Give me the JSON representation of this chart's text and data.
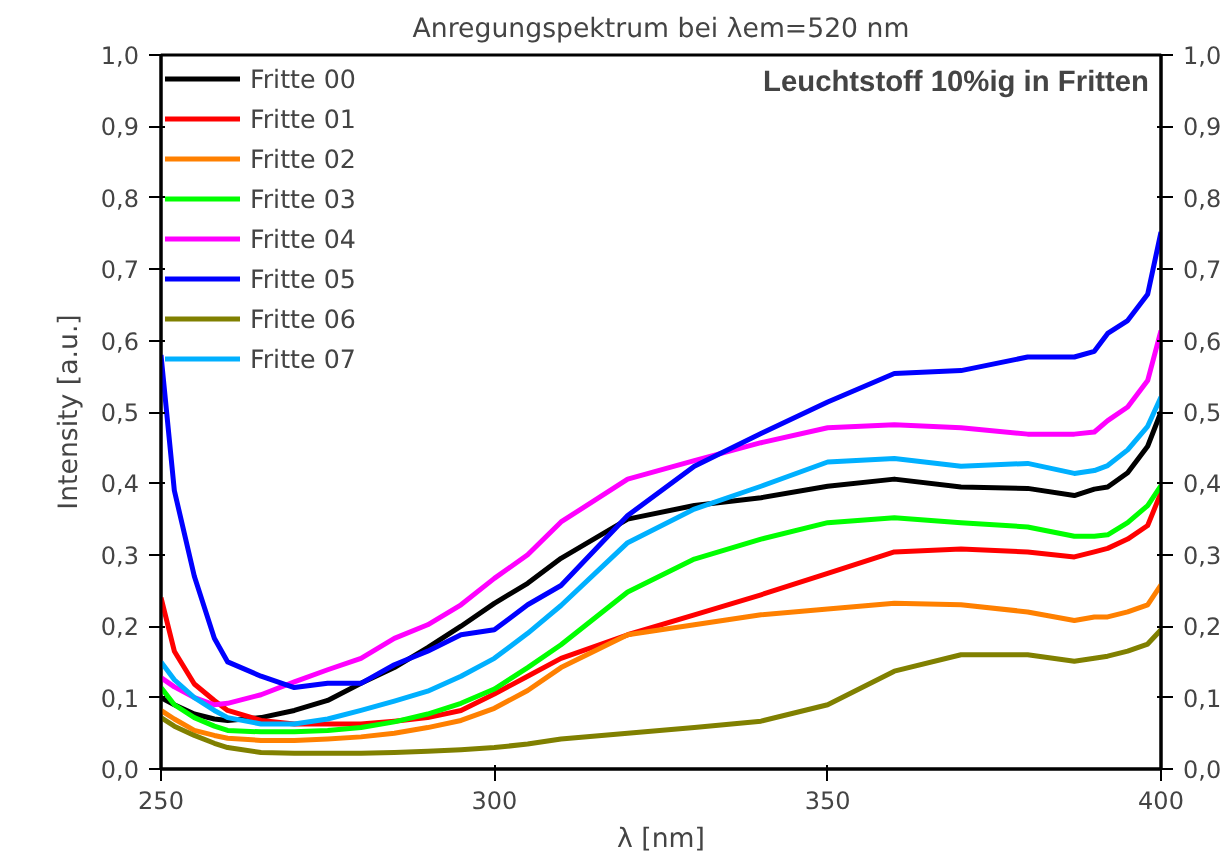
{
  "chart_data": {
    "type": "line",
    "title": "Anregungspektrum bei λem=520 nm",
    "xlabel": "λ [nm]",
    "ylabel": "Intensity [a.u.]",
    "annotations": [
      "Leuchtstoff 10%ig in Fritten"
    ],
    "x": [
      250,
      252,
      255,
      258,
      260,
      265,
      270,
      275,
      280,
      285,
      290,
      295,
      300,
      305,
      310,
      320,
      330,
      340,
      350,
      360,
      370,
      380,
      387,
      390,
      392,
      395,
      398,
      400
    ],
    "series": [
      {
        "name": "Fritte 00",
        "color": "#000000",
        "values": [
          0.1,
          0.09,
          0.077,
          0.07,
          0.068,
          0.072,
          0.082,
          0.096,
          0.12,
          0.142,
          0.17,
          0.2,
          0.232,
          0.26,
          0.295,
          0.35,
          0.369,
          0.38,
          0.396,
          0.406,
          0.395,
          0.393,
          0.383,
          0.392,
          0.395,
          0.415,
          0.452,
          0.5
        ]
      },
      {
        "name": "Fritte 01",
        "color": "#ff0000",
        "values": [
          0.24,
          0.165,
          0.119,
          0.096,
          0.082,
          0.068,
          0.063,
          0.063,
          0.063,
          0.067,
          0.072,
          0.082,
          0.105,
          0.13,
          0.155,
          0.188,
          0.216,
          0.244,
          0.274,
          0.304,
          0.308,
          0.304,
          0.297,
          0.304,
          0.309,
          0.322,
          0.341,
          0.387
        ]
      },
      {
        "name": "Fritte 02",
        "color": "#ff8000",
        "values": [
          0.082,
          0.07,
          0.054,
          0.047,
          0.043,
          0.04,
          0.04,
          0.042,
          0.045,
          0.05,
          0.058,
          0.068,
          0.085,
          0.11,
          0.142,
          0.188,
          0.202,
          0.216,
          0.224,
          0.232,
          0.23,
          0.22,
          0.208,
          0.213,
          0.213,
          0.22,
          0.23,
          0.258
        ]
      },
      {
        "name": "Fritte 03",
        "color": "#00ff00",
        "values": [
          0.114,
          0.09,
          0.072,
          0.06,
          0.054,
          0.052,
          0.052,
          0.054,
          0.058,
          0.066,
          0.077,
          0.092,
          0.112,
          0.142,
          0.174,
          0.248,
          0.294,
          0.322,
          0.345,
          0.352,
          0.345,
          0.339,
          0.326,
          0.326,
          0.328,
          0.345,
          0.369,
          0.397
        ]
      },
      {
        "name": "Fritte 04",
        "color": "#ff00ff",
        "values": [
          0.128,
          0.115,
          0.1,
          0.09,
          0.092,
          0.104,
          0.122,
          0.139,
          0.155,
          0.183,
          0.202,
          0.23,
          0.267,
          0.3,
          0.346,
          0.406,
          0.432,
          0.457,
          0.478,
          0.482,
          0.478,
          0.469,
          0.469,
          0.472,
          0.488,
          0.507,
          0.544,
          0.614
        ]
      },
      {
        "name": "Fritte 05",
        "color": "#0000ff",
        "values": [
          0.58,
          0.39,
          0.27,
          0.183,
          0.15,
          0.13,
          0.114,
          0.12,
          0.12,
          0.146,
          0.165,
          0.188,
          0.195,
          0.23,
          0.257,
          0.355,
          0.424,
          0.47,
          0.514,
          0.554,
          0.558,
          0.577,
          0.577,
          0.585,
          0.61,
          0.628,
          0.665,
          0.752
        ]
      },
      {
        "name": "Fritte 06",
        "color": "#808000",
        "values": [
          0.072,
          0.06,
          0.047,
          0.036,
          0.03,
          0.023,
          0.022,
          0.022,
          0.022,
          0.023,
          0.025,
          0.027,
          0.03,
          0.035,
          0.042,
          0.05,
          0.058,
          0.067,
          0.09,
          0.137,
          0.16,
          0.16,
          0.151,
          0.155,
          0.158,
          0.165,
          0.175,
          0.195
        ]
      },
      {
        "name": "Fritte 07",
        "color": "#00b0ff",
        "values": [
          0.15,
          0.125,
          0.1,
          0.082,
          0.072,
          0.063,
          0.063,
          0.07,
          0.082,
          0.095,
          0.109,
          0.13,
          0.155,
          0.19,
          0.229,
          0.317,
          0.364,
          0.396,
          0.43,
          0.435,
          0.424,
          0.428,
          0.414,
          0.418,
          0.425,
          0.447,
          0.48,
          0.521
        ]
      }
    ],
    "xlim": [
      250,
      400
    ],
    "xticks": [
      250,
      300,
      350,
      400
    ],
    "ylim": [
      0,
      1
    ],
    "yticks": [
      {
        "value": 0,
        "label": "0,0"
      },
      {
        "value": 0.1,
        "label": "0,1"
      },
      {
        "value": 0.2,
        "label": "0,2"
      },
      {
        "value": 0.3,
        "label": "0,3"
      },
      {
        "value": 0.4,
        "label": "0,4"
      },
      {
        "value": 0.5,
        "label": "0,5"
      },
      {
        "value": 0.6,
        "label": "0,6"
      },
      {
        "value": 0.7,
        "label": "0,7"
      },
      {
        "value": 0.8,
        "label": "0,8"
      },
      {
        "value": 0.9,
        "label": "0,9"
      },
      {
        "value": 1.0,
        "label": "1,0"
      }
    ],
    "y2lim": [
      0,
      1
    ],
    "y2ticks": [
      {
        "value": 0,
        "label": "0,0"
      },
      {
        "value": 0.1,
        "label": "0,1"
      },
      {
        "value": 0.2,
        "label": "0,2"
      },
      {
        "value": 0.3,
        "label": "0,3"
      },
      {
        "value": 0.4,
        "label": "0,4"
      },
      {
        "value": 0.5,
        "label": "0,5"
      },
      {
        "value": 0.6,
        "label": "0,6"
      },
      {
        "value": 0.7,
        "label": "0,7"
      },
      {
        "value": 0.8,
        "label": "0,8"
      },
      {
        "value": 0.9,
        "label": "0,9"
      },
      {
        "value": 1.0,
        "label": "1,0"
      }
    ],
    "grid": false,
    "legend": "top left",
    "line_style": "solid"
  }
}
